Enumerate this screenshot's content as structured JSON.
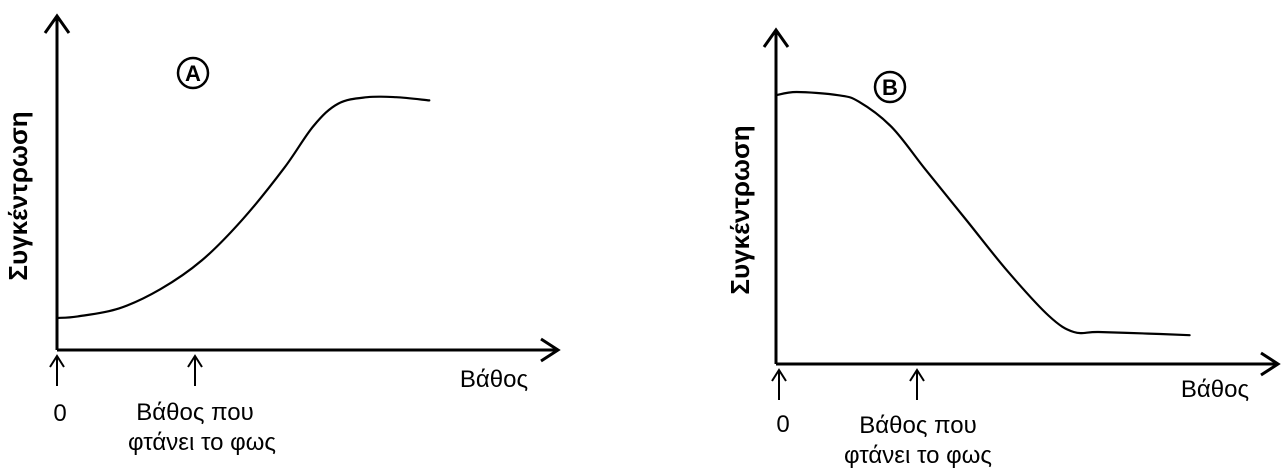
{
  "chart_data": [
    {
      "type": "line",
      "panel_label": "Α",
      "ylabel": "Συγκέντρωση",
      "xlabel": "Βάθος",
      "x_ticks": [
        {
          "label": "0",
          "value": 0
        },
        {
          "label_lines": [
            "Βάθος που",
            "φτάνει το φως"
          ],
          "value": 0.3
        }
      ],
      "xlim": [
        0,
        1.1
      ],
      "ylim": [
        0,
        1
      ],
      "series": [
        {
          "x": [
            0,
            0.05,
            0.15,
            0.25,
            0.35,
            0.45,
            0.55,
            0.62,
            0.68,
            0.75,
            0.82,
            0.9
          ],
          "values": [
            0.1,
            0.105,
            0.13,
            0.19,
            0.28,
            0.41,
            0.57,
            0.7,
            0.77,
            0.79,
            0.79,
            0.78
          ]
        }
      ]
    },
    {
      "type": "line",
      "panel_label": "Β",
      "ylabel": "Συγκέντρωση",
      "xlabel": "Βάθος",
      "x_ticks": [
        {
          "label": "0",
          "value": 0
        },
        {
          "label_lines": [
            "Βάθος που",
            "φτάνει το φως"
          ],
          "value": 0.29
        }
      ],
      "xlim": [
        0,
        1.1
      ],
      "ylim": [
        0,
        1
      ],
      "series": [
        {
          "x": [
            0,
            0.05,
            0.15,
            0.2,
            0.28,
            0.36,
            0.46,
            0.56,
            0.66,
            0.72,
            0.78,
            0.9,
            1.0
          ],
          "values": [
            0.84,
            0.85,
            0.84,
            0.82,
            0.74,
            0.61,
            0.45,
            0.29,
            0.15,
            0.1,
            0.1,
            0.095,
            0.09
          ]
        }
      ]
    }
  ]
}
